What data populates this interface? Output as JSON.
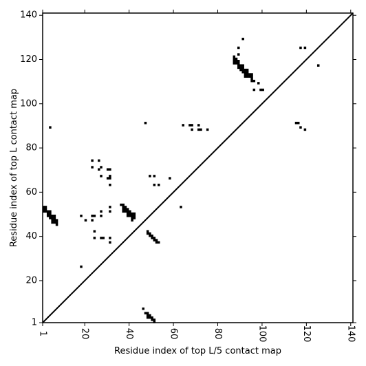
{
  "chart_data": {
    "type": "scatter",
    "title": "",
    "xlabel": "Residue index of top L/5 contact map",
    "ylabel": "Residue index of top L contact map",
    "xlim": [
      1,
      141
    ],
    "ylim": [
      1,
      141
    ],
    "x_ticks": [
      1,
      20,
      40,
      60,
      80,
      100,
      120,
      140
    ],
    "y_ticks": [
      1,
      20,
      40,
      60,
      80,
      100,
      120,
      140
    ],
    "x_tick_rotation": 90,
    "grid": false,
    "legend": "none",
    "marker": "square",
    "colors": {
      "points": "#000000",
      "axes": "#000000",
      "background": "#ffffff"
    },
    "diagonal": {
      "from": [
        1,
        1
      ],
      "to": [
        141,
        141
      ]
    },
    "series": [
      {
        "points": [
          [
            1,
            53
          ],
          [
            2,
            53
          ],
          [
            1,
            52
          ],
          [
            2,
            52
          ],
          [
            1,
            51
          ],
          [
            2,
            51
          ],
          [
            3,
            51
          ],
          [
            4,
            51
          ],
          [
            3,
            50
          ],
          [
            4,
            50
          ],
          [
            3,
            49
          ],
          [
            4,
            49
          ],
          [
            5,
            49
          ],
          [
            6,
            49
          ],
          [
            4,
            48
          ],
          [
            5,
            48
          ],
          [
            6,
            48
          ],
          [
            5,
            47
          ],
          [
            6,
            47
          ],
          [
            7,
            47
          ],
          [
            5,
            46
          ],
          [
            6,
            46
          ],
          [
            7,
            46
          ],
          [
            7,
            45
          ],
          [
            4,
            89
          ],
          [
            18,
            49
          ],
          [
            20,
            47
          ],
          [
            23,
            49
          ],
          [
            24,
            49
          ],
          [
            23,
            47
          ],
          [
            24,
            42
          ],
          [
            24,
            39
          ],
          [
            27,
            51
          ],
          [
            27,
            49
          ],
          [
            27,
            39
          ],
          [
            28,
            39
          ],
          [
            31,
            53
          ],
          [
            31,
            51
          ],
          [
            31,
            39
          ],
          [
            31,
            37
          ],
          [
            23,
            74
          ],
          [
            23,
            71
          ],
          [
            26,
            74
          ],
          [
            26,
            70
          ],
          [
            27,
            71
          ],
          [
            27,
            67
          ],
          [
            30,
            70
          ],
          [
            31,
            70
          ],
          [
            30,
            66
          ],
          [
            31,
            66
          ],
          [
            31,
            67
          ],
          [
            31,
            63
          ],
          [
            18,
            26
          ],
          [
            36,
            54
          ],
          [
            37,
            54
          ],
          [
            37,
            53
          ],
          [
            38,
            53
          ],
          [
            37,
            52
          ],
          [
            38,
            52
          ],
          [
            39,
            52
          ],
          [
            37,
            51
          ],
          [
            38,
            51
          ],
          [
            39,
            51
          ],
          [
            40,
            51
          ],
          [
            39,
            50
          ],
          [
            40,
            50
          ],
          [
            41,
            50
          ],
          [
            42,
            50
          ],
          [
            39,
            49
          ],
          [
            40,
            49
          ],
          [
            41,
            49
          ],
          [
            42,
            49
          ],
          [
            41,
            48
          ],
          [
            42,
            48
          ],
          [
            41,
            47
          ],
          [
            47,
            91
          ],
          [
            49,
            67
          ],
          [
            51,
            67
          ],
          [
            51,
            63
          ],
          [
            53,
            63
          ],
          [
            58,
            66
          ],
          [
            63,
            53
          ],
          [
            48,
            42
          ],
          [
            48,
            41
          ],
          [
            49,
            41
          ],
          [
            49,
            40
          ],
          [
            50,
            40
          ],
          [
            50,
            39
          ],
          [
            51,
            39
          ],
          [
            51,
            38
          ],
          [
            52,
            38
          ],
          [
            52,
            37
          ],
          [
            53,
            37
          ],
          [
            46,
            7
          ],
          [
            47,
            5
          ],
          [
            48,
            5
          ],
          [
            48,
            4
          ],
          [
            49,
            4
          ],
          [
            48,
            3
          ],
          [
            49,
            3
          ],
          [
            50,
            3
          ],
          [
            50,
            2
          ],
          [
            51,
            2
          ],
          [
            51,
            1
          ],
          [
            64,
            90
          ],
          [
            67,
            90
          ],
          [
            68,
            90
          ],
          [
            68,
            88
          ],
          [
            71,
            90
          ],
          [
            71,
            88
          ],
          [
            72,
            88
          ],
          [
            75,
            88
          ],
          [
            87,
            121
          ],
          [
            87,
            120
          ],
          [
            88,
            120
          ],
          [
            87,
            119
          ],
          [
            88,
            119
          ],
          [
            89,
            119
          ],
          [
            87,
            118
          ],
          [
            88,
            118
          ],
          [
            89,
            118
          ],
          [
            89,
            117
          ],
          [
            90,
            117
          ],
          [
            91,
            117
          ],
          [
            89,
            116
          ],
          [
            90,
            116
          ],
          [
            91,
            116
          ],
          [
            90,
            115
          ],
          [
            91,
            115
          ],
          [
            92,
            115
          ],
          [
            93,
            115
          ],
          [
            91,
            114
          ],
          [
            92,
            114
          ],
          [
            93,
            114
          ],
          [
            92,
            113
          ],
          [
            93,
            113
          ],
          [
            94,
            113
          ],
          [
            95,
            113
          ],
          [
            92,
            112
          ],
          [
            93,
            112
          ],
          [
            94,
            112
          ],
          [
            95,
            112
          ],
          [
            95,
            111
          ],
          [
            95,
            110
          ],
          [
            96,
            110
          ],
          [
            89,
            125
          ],
          [
            89,
            122
          ],
          [
            91,
            129
          ],
          [
            96,
            106
          ],
          [
            98,
            109
          ],
          [
            99,
            106
          ],
          [
            100,
            106
          ],
          [
            115,
            91
          ],
          [
            116,
            91
          ],
          [
            117,
            89
          ],
          [
            119,
            88
          ],
          [
            117,
            125
          ],
          [
            119,
            125
          ],
          [
            125,
            117
          ]
        ]
      }
    ]
  }
}
